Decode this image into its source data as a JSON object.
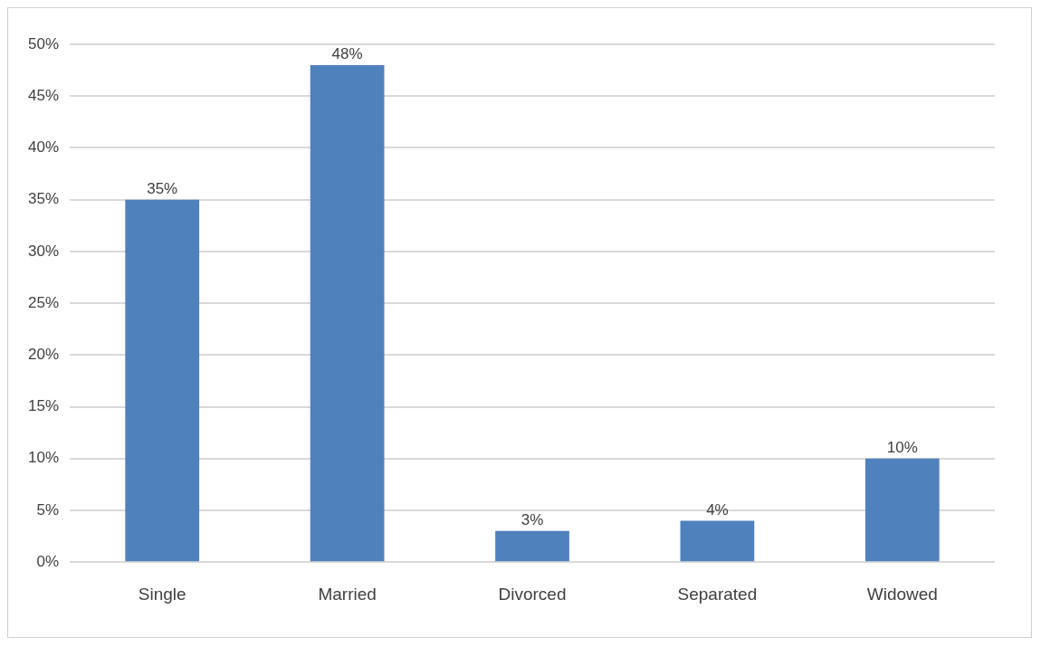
{
  "chart_data": {
    "type": "bar",
    "categories": [
      "Single",
      "Married",
      "Divorced",
      "Separated",
      "Widowed"
    ],
    "values": [
      35,
      48,
      3,
      4,
      10
    ],
    "value_labels": [
      "35%",
      "48%",
      "3%",
      "4%",
      "10%"
    ],
    "color": "#4f81bd",
    "ylim": [
      0,
      50
    ],
    "yticks": [
      {
        "value": 0,
        "label": "0%"
      },
      {
        "value": 5,
        "label": "5%"
      },
      {
        "value": 10,
        "label": "10%"
      },
      {
        "value": 15,
        "label": "15%"
      },
      {
        "value": 20,
        "label": "20%"
      },
      {
        "value": 25,
        "label": "25%"
      },
      {
        "value": 30,
        "label": "30%"
      },
      {
        "value": 35,
        "label": "35%"
      },
      {
        "value": 40,
        "label": "40%"
      },
      {
        "value": 45,
        "label": "45%"
      },
      {
        "value": 50,
        "label": "50%"
      }
    ],
    "grid": "y",
    "legend": false
  }
}
